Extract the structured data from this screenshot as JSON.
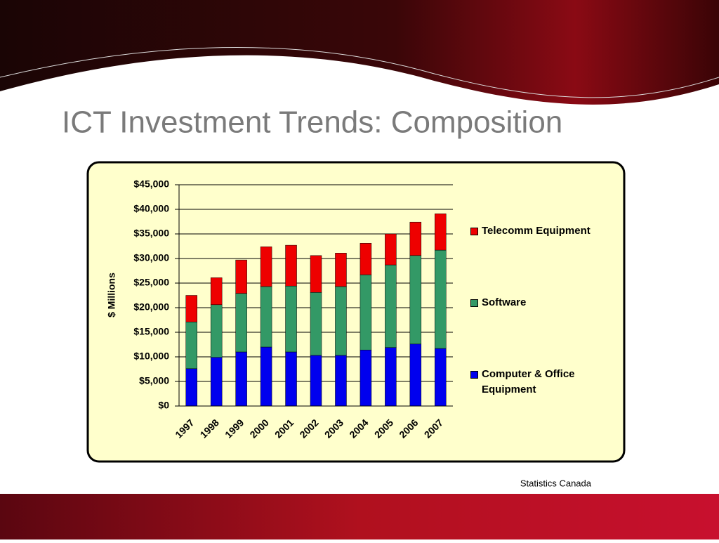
{
  "title": "ICT Investment Trends: Composition",
  "source": "Statistics Canada",
  "chart_data": {
    "type": "stacked_bar",
    "y_label": "$ Millions",
    "categories": [
      "1997",
      "1998",
      "1999",
      "2000",
      "2001",
      "2002",
      "2003",
      "2004",
      "2005",
      "2006",
      "2007"
    ],
    "series": [
      {
        "name": "Computer & Office Equipment",
        "color": "#0000ee",
        "values": [
          7.6,
          9.9,
          11,
          12,
          11,
          10.3,
          10.3,
          11.4,
          11.9,
          12.6,
          11.7
        ]
      },
      {
        "name": "Software",
        "color": "#339966",
        "values": [
          9.5,
          10.7,
          11.9,
          12.3,
          13.4,
          12.8,
          14.0,
          15.3,
          16.8,
          18.0,
          20.0
        ]
      },
      {
        "name": "Telecomm Equipment",
        "color": "#ee0000",
        "values": [
          5.4,
          5.5,
          6.8,
          8.1,
          8.3,
          7.5,
          6.8,
          6.4,
          6.3,
          6.8,
          7.4
        ]
      }
    ],
    "ylim": [
      0,
      45
    ],
    "yticks": [
      {
        "value": 0,
        "label": "$0"
      },
      {
        "value": 5,
        "label": "$5,000"
      },
      {
        "value": 10,
        "label": "$10,000"
      },
      {
        "value": 15,
        "label": "$15,000"
      },
      {
        "value": 20,
        "label": "$20,000"
      },
      {
        "value": 25,
        "label": "$25,000"
      },
      {
        "value": 30,
        "label": "$30,000"
      },
      {
        "value": 35,
        "label": "$35,000"
      },
      {
        "value": 40,
        "label": "$40,000"
      },
      {
        "value": 45,
        "label": "$45,000"
      }
    ],
    "grid": true,
    "legend": "right"
  }
}
